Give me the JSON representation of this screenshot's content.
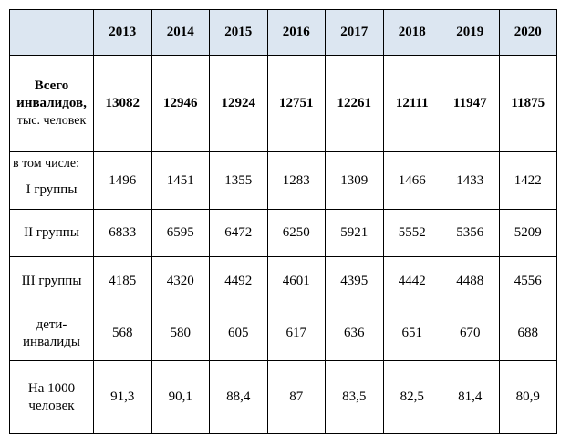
{
  "table": {
    "years": [
      "2013",
      "2014",
      "2015",
      "2016",
      "2017",
      "2018",
      "2019",
      "2020"
    ],
    "total": {
      "label_line1": "Всего",
      "label_line2": "инвалидов,",
      "label_line3": "тыс. человек",
      "values": [
        "13082",
        "12946",
        "12924",
        "12751",
        "12261",
        "12111",
        "11947",
        "11875"
      ]
    },
    "group1": {
      "prefix": "в том числе:",
      "label": "I группы",
      "values": [
        "1496",
        "1451",
        "1355",
        "1283",
        "1309",
        "1466",
        "1433",
        "1422"
      ]
    },
    "group2": {
      "label": "II группы",
      "values": [
        "6833",
        "6595",
        "6472",
        "6250",
        "5921",
        "5552",
        "5356",
        "5209"
      ]
    },
    "group3": {
      "label": "III группы",
      "values": [
        "4185",
        "4320",
        "4492",
        "4601",
        "4395",
        "4442",
        "4488",
        "4556"
      ]
    },
    "children": {
      "label_line1": "дети-",
      "label_line2": "инвалиды",
      "values": [
        "568",
        "580",
        "605",
        "617",
        "636",
        "651",
        "670",
        "688"
      ]
    },
    "per_1000": {
      "label_line1": "На 1000",
      "label_line2": "человек",
      "values": [
        "91,3",
        "90,1",
        "88,4",
        "87",
        "83,5",
        "82,5",
        "81,4",
        "80,9"
      ]
    }
  }
}
